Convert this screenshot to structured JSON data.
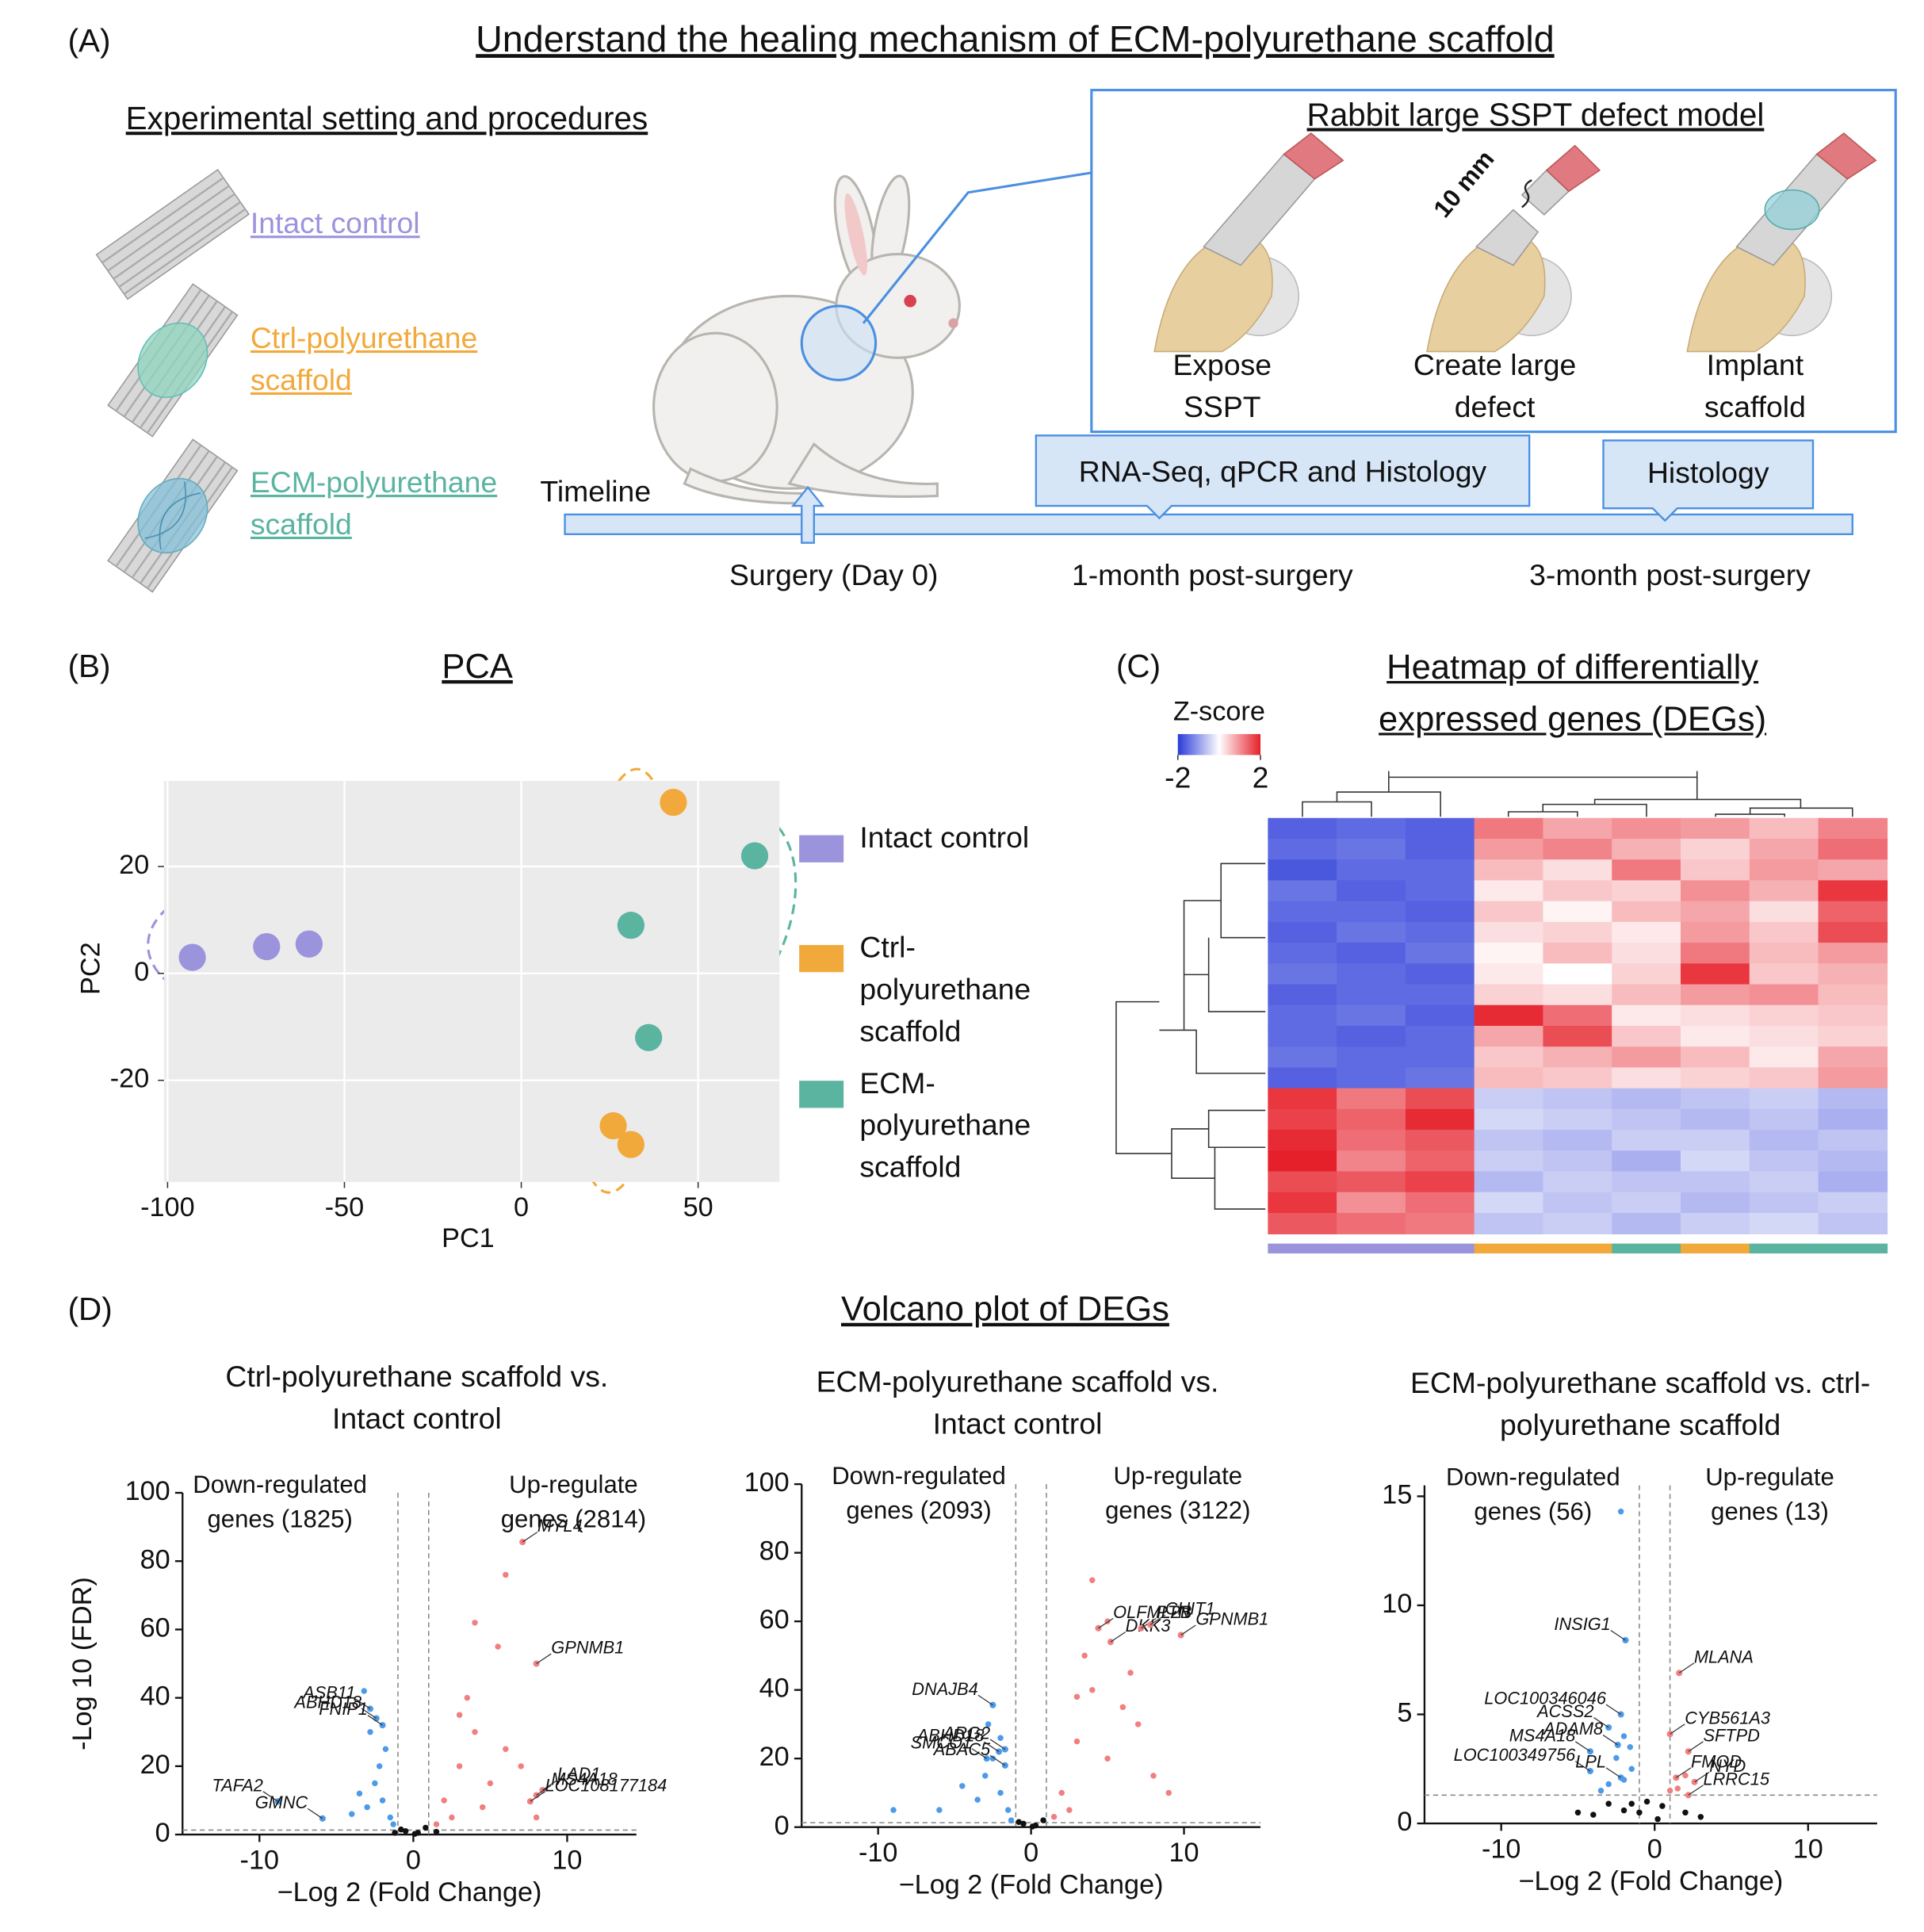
{
  "panel_a": {
    "label": "(A)",
    "title": "Understand the healing mechanism of ECM-polyurethane scaffold",
    "settings_heading": "Experimental setting and procedures",
    "groups": [
      {
        "label": "Intact control",
        "color": "#9b93dc"
      },
      {
        "label": "Ctrl-polyurethane scaffold",
        "color": "#f2a93b"
      },
      {
        "label": "ECM-polyurethane scaffold",
        "color": "#5ab4a0"
      }
    ],
    "model_heading": "Rabbit large SSPT defect model",
    "defect_size": "10 mm",
    "steps": [
      "Expose SSPT",
      "Create large defect",
      "Implant scaffold"
    ],
    "timeline_label": "Timeline",
    "timepoints": [
      {
        "label": "Surgery (Day 0)"
      },
      {
        "label": "1-month post-surgery",
        "assay": "RNA-Seq, qPCR and Histology"
      },
      {
        "label": "3-month post-surgery",
        "assay": "Histology"
      }
    ]
  },
  "panel_b": {
    "label": "(B)"
  },
  "panel_c": {
    "label": "(C)"
  },
  "panel_d": {
    "label": "(D)",
    "title": "Volcano plot of DEGs"
  },
  "chart_data": [
    {
      "type": "scatter",
      "title": "PCA",
      "xlabel": "PC1",
      "ylabel": "PC2",
      "xlim": [
        -101,
        73
      ],
      "ylim": [
        -39,
        36
      ],
      "xticks": [
        -100,
        -50,
        0,
        50
      ],
      "yticks": [
        -20,
        0,
        20
      ],
      "grid": true,
      "series": [
        {
          "name": "Intact control",
          "color": "#9b93dc",
          "x": [
            -93,
            -72,
            -60
          ],
          "values": [
            3,
            5,
            5.5
          ]
        },
        {
          "name": "Ctrl-polyurethane scaffold",
          "color": "#f2a93b",
          "x": [
            43,
            26,
            31
          ],
          "values": [
            32,
            -28.5,
            -32
          ]
        },
        {
          "name": "ECM-polyurethane scaffold",
          "color": "#5ab4a0",
          "x": [
            66,
            31,
            36
          ],
          "values": [
            22,
            9,
            -12
          ]
        }
      ]
    },
    {
      "type": "heatmap",
      "title": "Heatmap of differentially expressed genes (DEGs)",
      "colorbar_label": "Z-score",
      "zlim": [
        -2,
        2
      ],
      "zticks": [
        -2,
        2
      ],
      "colorscale": [
        "#2a3ad8",
        "#ffffff",
        "#e6202a"
      ],
      "column_colors": [
        "#9b93dc",
        "#9b93dc",
        "#9b93dc",
        "#f2a93b",
        "#f2a93b",
        "#5ab4a0",
        "#f2a93b",
        "#5ab4a0",
        "#5ab4a0"
      ],
      "values": [
        [
          -1.6,
          -1.5,
          -1.6,
          1.2,
          0.8,
          1.0,
          0.9,
          0.6,
          1.1
        ],
        [
          -1.5,
          -1.4,
          -1.6,
          0.9,
          1.1,
          0.7,
          0.4,
          0.8,
          1.3
        ],
        [
          -1.7,
          -1.5,
          -1.5,
          0.6,
          0.3,
          1.2,
          0.5,
          0.9,
          0.8
        ],
        [
          -1.4,
          -1.6,
          -1.5,
          0.2,
          0.5,
          0.4,
          1.0,
          0.7,
          1.8
        ],
        [
          -1.5,
          -1.5,
          -1.6,
          0.5,
          0.1,
          0.6,
          0.8,
          0.3,
          1.4
        ],
        [
          -1.6,
          -1.4,
          -1.5,
          0.3,
          0.4,
          0.2,
          0.9,
          0.5,
          1.6
        ],
        [
          -1.5,
          -1.6,
          -1.4,
          0.1,
          0.6,
          0.3,
          1.2,
          0.6,
          0.9
        ],
        [
          -1.4,
          -1.5,
          -1.6,
          0.2,
          0.0,
          0.4,
          1.8,
          0.5,
          0.7
        ],
        [
          -1.6,
          -1.5,
          -1.5,
          0.4,
          0.3,
          0.6,
          0.9,
          1.0,
          0.6
        ],
        [
          -1.5,
          -1.4,
          -1.6,
          1.9,
          1.3,
          0.2,
          0.3,
          0.4,
          0.5
        ],
        [
          -1.5,
          -1.6,
          -1.5,
          0.8,
          1.6,
          0.5,
          0.2,
          0.3,
          0.4
        ],
        [
          -1.4,
          -1.5,
          -1.5,
          0.5,
          0.7,
          0.9,
          0.6,
          0.2,
          0.8
        ],
        [
          -1.6,
          -1.5,
          -1.4,
          0.6,
          0.5,
          0.3,
          0.4,
          0.5,
          0.9
        ],
        [
          1.8,
          1.2,
          1.6,
          -0.5,
          -0.6,
          -0.7,
          -0.6,
          -0.5,
          -0.7
        ],
        [
          1.7,
          1.4,
          1.9,
          -0.4,
          -0.5,
          -0.6,
          -0.7,
          -0.6,
          -0.8
        ],
        [
          1.9,
          1.3,
          1.5,
          -0.6,
          -0.7,
          -0.5,
          -0.5,
          -0.7,
          -0.6
        ],
        [
          2.0,
          1.1,
          1.4,
          -0.5,
          -0.6,
          -0.8,
          -0.4,
          -0.6,
          -0.7
        ],
        [
          1.6,
          1.5,
          1.7,
          -0.7,
          -0.5,
          -0.6,
          -0.6,
          -0.5,
          -0.8
        ],
        [
          1.8,
          1.0,
          1.3,
          -0.4,
          -0.6,
          -0.5,
          -0.7,
          -0.6,
          -0.5
        ],
        [
          1.5,
          1.3,
          1.2,
          -0.6,
          -0.5,
          -0.7,
          -0.5,
          -0.4,
          -0.6
        ]
      ]
    },
    {
      "type": "volcano",
      "title": "Ctrl-polyurethane scaffold vs. Intact control",
      "xlabel": "−Log 2 (Fold Change)",
      "ylabel": "-Log 10 (FDR)",
      "xlim": [
        -15,
        14.5
      ],
      "ylim": [
        0,
        100
      ],
      "xticks": [
        -10,
        0,
        10
      ],
      "yticks": [
        0,
        20,
        40,
        60,
        80,
        100
      ],
      "fc_cutoff": 1,
      "fdr_line": 1.3,
      "down_label": "Down-regulated genes (1825)",
      "up_label": "Up-regulate genes (2814)",
      "colors": {
        "up": "#f08080",
        "down": "#4d9be8",
        "ns": "#111111"
      },
      "x": [
        -2,
        -2.5,
        -3,
        -1.5,
        -2.2,
        -3.5,
        -4,
        -1.8,
        -2.8,
        -3.2,
        -1.3,
        2,
        3,
        4,
        5,
        6,
        3.5,
        5.5,
        2.5,
        4.5,
        7,
        6,
        4,
        8,
        3,
        1.5,
        -0.5,
        0.3,
        0.8,
        -0.8,
        0.1,
        -1.2,
        1.5
      ],
      "y": [
        10,
        15,
        8,
        5,
        20,
        12,
        6,
        25,
        30,
        42,
        3,
        10,
        20,
        30,
        15,
        25,
        40,
        55,
        5,
        8,
        20,
        76,
        62,
        5,
        35,
        3,
        1,
        0.5,
        2,
        1.5,
        0.2,
        0.5,
        0.8
      ],
      "annotations": [
        {
          "text": "MYL4",
          "x": 7.1,
          "y": 85.6
        },
        {
          "text": "GPNMB1",
          "x": 8,
          "y": 50
        },
        {
          "text": "ASB11",
          "x": -2.8,
          "y": 36.8
        },
        {
          "text": "ABHD18",
          "x": -2.4,
          "y": 34
        },
        {
          "text": "FNIP1",
          "x": -2,
          "y": 32
        },
        {
          "text": "TAFA2",
          "x": -8.8,
          "y": 9.7
        },
        {
          "text": "GMNC",
          "x": -5.9,
          "y": 4.7
        },
        {
          "text": "LAD1",
          "x": 8.4,
          "y": 13
        },
        {
          "text": "MS4A18",
          "x": 8,
          "y": 11.5
        },
        {
          "text": "LOC108177184",
          "x": 7.6,
          "y": 9.7
        }
      ]
    },
    {
      "type": "volcano",
      "title": "ECM-polyurethane scaffold vs. Intact control",
      "xlabel": "−Log 2 (Fold Change)",
      "xlim": [
        -15,
        15
      ],
      "ylim": [
        0,
        100
      ],
      "xticks": [
        -10,
        0,
        10
      ],
      "yticks": [
        0,
        20,
        40,
        60,
        80,
        100
      ],
      "fc_cutoff": 1,
      "fdr_line": 1.3,
      "down_label": "Down-regulated genes (2093)",
      "up_label": "Up-regulate genes (3122)",
      "colors": {
        "up": "#f08080",
        "down": "#4d9be8",
        "ns": "#111111"
      },
      "x": [
        -2,
        -2.5,
        -3,
        -1.5,
        -3.5,
        -4.5,
        -6,
        -2,
        -9,
        -2.8,
        -1.3,
        2,
        3,
        4,
        5,
        6,
        3.5,
        4,
        6.5,
        8,
        9,
        2.5,
        5,
        7,
        1.5,
        3,
        -0.5,
        0.3,
        0.8,
        -0.8,
        0.1
      ],
      "y": [
        10,
        20,
        15,
        5,
        8,
        12,
        5,
        26,
        5,
        30,
        2,
        10,
        25,
        40,
        20,
        35,
        50,
        72,
        45,
        15,
        10,
        5,
        60,
        30,
        3,
        38,
        1,
        0.5,
        2,
        1.5,
        0.2
      ],
      "annotations": [
        {
          "text": "DKK3",
          "x": 5.2,
          "y": 54
        },
        {
          "text": "PTN",
          "x": 7.2,
          "y": 58
        },
        {
          "text": "CHIT1",
          "x": 7.8,
          "y": 59
        },
        {
          "text": "OLFML2B",
          "x": 4.4,
          "y": 58
        },
        {
          "text": "GPNMB1",
          "x": 9.8,
          "y": 56
        },
        {
          "text": "DNAJB4",
          "x": -2.5,
          "y": 35.6
        },
        {
          "text": "ARG2",
          "x": -1.7,
          "y": 22.7
        },
        {
          "text": "SMCO1",
          "x": -2.9,
          "y": 20
        },
        {
          "text": "ABHD18",
          "x": -2.1,
          "y": 22
        },
        {
          "text": "ABAC5",
          "x": -1.7,
          "y": 18
        }
      ]
    },
    {
      "type": "volcano",
      "title": "ECM-polyurethane scaffold vs. ctrl-polyurethane scaffold",
      "xlabel": "−Log 2 (Fold Change)",
      "xlim": [
        -15,
        14.5
      ],
      "ylim": [
        0,
        15.5
      ],
      "xticks": [
        -10,
        0,
        10
      ],
      "yticks": [
        0,
        5,
        10,
        15
      ],
      "fc_cutoff": 1,
      "fdr_line": 1.3,
      "down_label": "Down-regulated genes (56)",
      "up_label": "Up-regulate genes (13)",
      "colors": {
        "up": "#f08080",
        "down": "#4d9be8",
        "ns": "#111111"
      },
      "x": [
        -2,
        -2.5,
        -3,
        -1.5,
        -3.5,
        -2,
        -1.6,
        -2.2,
        1.5,
        2,
        -1,
        -0.5,
        0.5,
        1,
        -2,
        -3,
        2,
        3,
        -4,
        0.2,
        -1.5,
        -5
      ],
      "y": [
        2,
        3,
        1.8,
        2.5,
        1.5,
        4,
        3.5,
        14.3,
        1.6,
        2.2,
        0.5,
        1,
        0.8,
        1.5,
        0.6,
        0.9,
        0.5,
        0.3,
        0.4,
        0.2,
        0.9,
        0.5
      ],
      "annotations": [
        {
          "text": "INSIG1",
          "x": -1.9,
          "y": 8.4
        },
        {
          "text": "MLANA",
          "x": 1.6,
          "y": 6.9
        },
        {
          "text": "LOC100346046",
          "x": -2.2,
          "y": 5
        },
        {
          "text": "ACSS2",
          "x": -3,
          "y": 4.4
        },
        {
          "text": "ADAM8",
          "x": -2.4,
          "y": 3.6
        },
        {
          "text": "CYB561A3",
          "x": 1,
          "y": 4.1
        },
        {
          "text": "MS4A18",
          "x": -4.2,
          "y": 3.3
        },
        {
          "text": "SFTPD",
          "x": 2.2,
          "y": 3.3
        },
        {
          "text": "LOC100349756",
          "x": -4.2,
          "y": 2.4
        },
        {
          "text": "LPL",
          "x": -2.2,
          "y": 2.1
        },
        {
          "text": "FMOD",
          "x": 1.4,
          "y": 2.1
        },
        {
          "text": "NYD",
          "x": 2.6,
          "y": 1.9
        },
        {
          "text": "LRRC15",
          "x": 2.2,
          "y": 1.3
        }
      ]
    }
  ]
}
